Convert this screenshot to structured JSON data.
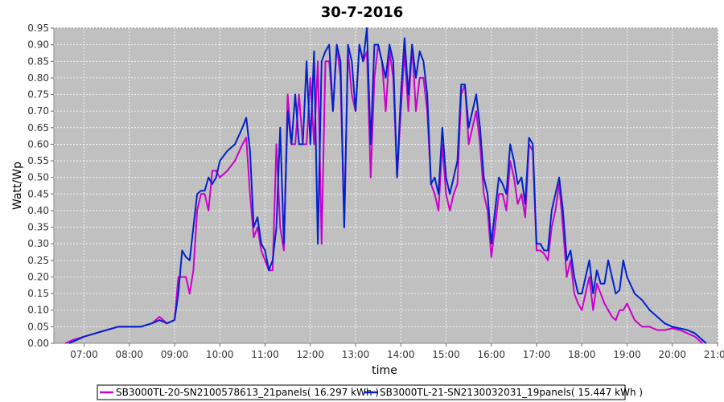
{
  "chart_data": {
    "type": "line",
    "title": "30-7-2016",
    "xlabel": "time",
    "ylabel": "Watt/Wp",
    "xlim": [
      "06:20",
      "21:00"
    ],
    "ylim": [
      0,
      0.95
    ],
    "xticks": [
      "07:00",
      "08:00",
      "09:00",
      "10:00",
      "11:00",
      "12:00",
      "13:00",
      "14:00",
      "15:00",
      "16:00",
      "17:00",
      "18:00",
      "19:00",
      "20:00",
      "21:00"
    ],
    "yticks": [
      "0.00",
      "0.05",
      "0.10",
      "0.15",
      "0.20",
      "0.25",
      "0.30",
      "0.35",
      "0.40",
      "0.45",
      "0.50",
      "0.55",
      "0.60",
      "0.65",
      "0.70",
      "0.75",
      "0.80",
      "0.85",
      "0.90",
      "0.95"
    ],
    "grid": true,
    "legend_position": "bottom",
    "series": [
      {
        "name": "SB3000TL-20-SN2100578613_21panels( 16.297 kWh )",
        "color": "#cc00cc",
        "x": [
          "06:35",
          "06:45",
          "07:00",
          "07:15",
          "07:30",
          "07:45",
          "08:00",
          "08:15",
          "08:30",
          "08:40",
          "08:50",
          "09:00",
          "09:05",
          "09:10",
          "09:15",
          "09:20",
          "09:25",
          "09:30",
          "09:35",
          "09:40",
          "09:45",
          "09:50",
          "09:55",
          "10:00",
          "10:10",
          "10:20",
          "10:30",
          "10:35",
          "10:40",
          "10:45",
          "10:50",
          "10:55",
          "11:00",
          "11:05",
          "11:10",
          "11:15",
          "11:20",
          "11:25",
          "11:30",
          "11:35",
          "11:40",
          "11:45",
          "11:50",
          "11:55",
          "12:00",
          "12:05",
          "12:10",
          "12:15",
          "12:20",
          "12:25",
          "12:30",
          "12:35",
          "12:40",
          "12:45",
          "12:50",
          "12:55",
          "13:00",
          "13:05",
          "13:10",
          "13:15",
          "13:20",
          "13:25",
          "13:30",
          "13:35",
          "13:40",
          "13:45",
          "13:50",
          "13:55",
          "14:00",
          "14:05",
          "14:10",
          "14:15",
          "14:20",
          "14:25",
          "14:30",
          "14:35",
          "14:40",
          "14:45",
          "14:50",
          "14:55",
          "15:00",
          "15:05",
          "15:10",
          "15:15",
          "15:20",
          "15:25",
          "15:30",
          "15:35",
          "15:40",
          "15:45",
          "15:50",
          "15:55",
          "16:00",
          "16:05",
          "16:10",
          "16:15",
          "16:20",
          "16:25",
          "16:30",
          "16:35",
          "16:40",
          "16:45",
          "16:50",
          "16:55",
          "17:00",
          "17:05",
          "17:10",
          "17:15",
          "17:20",
          "17:25",
          "17:30",
          "17:35",
          "17:40",
          "17:45",
          "17:50",
          "17:55",
          "18:00",
          "18:05",
          "18:10",
          "18:15",
          "18:20",
          "18:25",
          "18:30",
          "18:35",
          "18:40",
          "18:45",
          "18:50",
          "18:55",
          "19:00",
          "19:10",
          "19:20",
          "19:30",
          "19:40",
          "19:50",
          "20:00",
          "20:10",
          "20:20",
          "20:30",
          "20:40"
        ],
        "y": [
          0.0,
          0.01,
          0.02,
          0.03,
          0.04,
          0.05,
          0.05,
          0.05,
          0.06,
          0.08,
          0.06,
          0.07,
          0.2,
          0.2,
          0.2,
          0.15,
          0.22,
          0.4,
          0.45,
          0.45,
          0.4,
          0.52,
          0.52,
          0.5,
          0.52,
          0.55,
          0.6,
          0.62,
          0.45,
          0.32,
          0.35,
          0.28,
          0.25,
          0.22,
          0.22,
          0.6,
          0.35,
          0.28,
          0.75,
          0.6,
          0.6,
          0.75,
          0.6,
          0.6,
          0.8,
          0.6,
          0.85,
          0.3,
          0.85,
          0.85,
          0.7,
          0.9,
          0.8,
          0.35,
          0.88,
          0.75,
          0.7,
          0.9,
          0.85,
          0.88,
          0.5,
          0.8,
          0.9,
          0.85,
          0.7,
          0.88,
          0.8,
          0.5,
          0.7,
          0.88,
          0.7,
          0.9,
          0.7,
          0.8,
          0.8,
          0.7,
          0.48,
          0.45,
          0.4,
          0.6,
          0.45,
          0.4,
          0.45,
          0.48,
          0.75,
          0.78,
          0.6,
          0.65,
          0.7,
          0.6,
          0.45,
          0.4,
          0.26,
          0.35,
          0.45,
          0.45,
          0.4,
          0.55,
          0.5,
          0.42,
          0.45,
          0.38,
          0.6,
          0.58,
          0.28,
          0.28,
          0.27,
          0.25,
          0.35,
          0.4,
          0.48,
          0.35,
          0.2,
          0.25,
          0.15,
          0.12,
          0.1,
          0.15,
          0.2,
          0.1,
          0.18,
          0.15,
          0.12,
          0.1,
          0.08,
          0.07,
          0.1,
          0.1,
          0.12,
          0.07,
          0.05,
          0.05,
          0.04,
          0.04,
          0.045,
          0.04,
          0.03,
          0.02,
          0.0
        ]
      },
      {
        "name": "SB3000TL-21-SN2130032031_19panels( 15.447 kWh )",
        "color": "#0022cc",
        "x": [
          "06:40",
          "06:50",
          "07:00",
          "07:15",
          "07:30",
          "07:45",
          "08:00",
          "08:15",
          "08:30",
          "08:40",
          "08:50",
          "09:00",
          "09:05",
          "09:10",
          "09:15",
          "09:20",
          "09:25",
          "09:30",
          "09:35",
          "09:40",
          "09:45",
          "09:50",
          "09:55",
          "10:00",
          "10:10",
          "10:20",
          "10:30",
          "10:35",
          "10:40",
          "10:45",
          "10:50",
          "10:55",
          "11:00",
          "11:05",
          "11:10",
          "11:15",
          "11:20",
          "11:25",
          "11:30",
          "11:35",
          "11:40",
          "11:45",
          "11:50",
          "11:55",
          "12:00",
          "12:05",
          "12:10",
          "12:15",
          "12:20",
          "12:25",
          "12:30",
          "12:35",
          "12:40",
          "12:45",
          "12:50",
          "12:55",
          "13:00",
          "13:05",
          "13:10",
          "13:15",
          "13:20",
          "13:25",
          "13:30",
          "13:35",
          "13:40",
          "13:45",
          "13:50",
          "13:55",
          "14:00",
          "14:05",
          "14:10",
          "14:15",
          "14:20",
          "14:25",
          "14:30",
          "14:35",
          "14:40",
          "14:45",
          "14:50",
          "14:55",
          "15:00",
          "15:05",
          "15:10",
          "15:15",
          "15:20",
          "15:25",
          "15:30",
          "15:35",
          "15:40",
          "15:45",
          "15:50",
          "15:55",
          "16:00",
          "16:05",
          "16:10",
          "16:15",
          "16:20",
          "16:25",
          "16:30",
          "16:35",
          "16:40",
          "16:45",
          "16:50",
          "16:55",
          "17:00",
          "17:05",
          "17:10",
          "17:15",
          "17:20",
          "17:25",
          "17:30",
          "17:35",
          "17:40",
          "17:45",
          "17:50",
          "17:55",
          "18:00",
          "18:05",
          "18:10",
          "18:15",
          "18:20",
          "18:25",
          "18:30",
          "18:35",
          "18:40",
          "18:45",
          "18:50",
          "18:55",
          "19:00",
          "19:10",
          "19:20",
          "19:30",
          "19:40",
          "19:50",
          "20:00",
          "20:10",
          "20:20",
          "20:30",
          "20:45"
        ],
        "y": [
          0.0,
          0.01,
          0.02,
          0.03,
          0.04,
          0.05,
          0.05,
          0.05,
          0.06,
          0.07,
          0.06,
          0.07,
          0.15,
          0.28,
          0.26,
          0.25,
          0.35,
          0.45,
          0.46,
          0.46,
          0.5,
          0.48,
          0.5,
          0.55,
          0.58,
          0.6,
          0.65,
          0.68,
          0.58,
          0.35,
          0.38,
          0.3,
          0.28,
          0.22,
          0.25,
          0.35,
          0.65,
          0.3,
          0.7,
          0.6,
          0.75,
          0.6,
          0.6,
          0.85,
          0.6,
          0.88,
          0.3,
          0.85,
          0.88,
          0.9,
          0.7,
          0.9,
          0.85,
          0.35,
          0.9,
          0.85,
          0.7,
          0.9,
          0.85,
          0.95,
          0.6,
          0.9,
          0.9,
          0.85,
          0.8,
          0.9,
          0.85,
          0.5,
          0.75,
          0.92,
          0.75,
          0.9,
          0.8,
          0.88,
          0.85,
          0.75,
          0.48,
          0.5,
          0.45,
          0.65,
          0.5,
          0.45,
          0.5,
          0.55,
          0.78,
          0.78,
          0.65,
          0.7,
          0.75,
          0.65,
          0.5,
          0.45,
          0.3,
          0.4,
          0.5,
          0.48,
          0.45,
          0.6,
          0.55,
          0.48,
          0.5,
          0.42,
          0.62,
          0.6,
          0.3,
          0.3,
          0.28,
          0.28,
          0.4,
          0.45,
          0.5,
          0.4,
          0.25,
          0.28,
          0.2,
          0.15,
          0.15,
          0.2,
          0.25,
          0.15,
          0.22,
          0.18,
          0.18,
          0.25,
          0.2,
          0.15,
          0.16,
          0.25,
          0.2,
          0.15,
          0.13,
          0.1,
          0.08,
          0.06,
          0.05,
          0.045,
          0.04,
          0.03,
          0.0
        ]
      }
    ]
  }
}
